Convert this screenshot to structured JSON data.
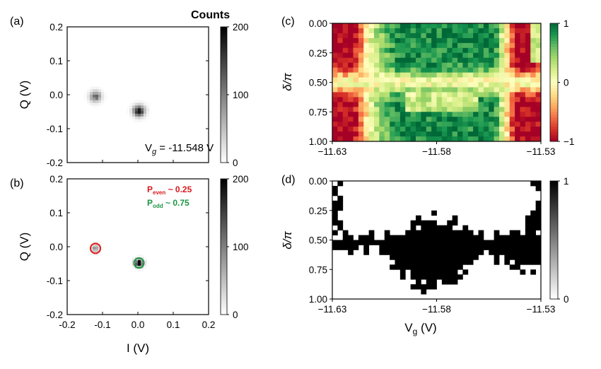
{
  "figure": {
    "panel_labels": [
      "(a)",
      "(b)",
      "(c)",
      "(d)"
    ],
    "colorbar_title": "Counts"
  },
  "chart_data": [
    {
      "panel": "(a)",
      "type": "heatmap",
      "description": "IQ histogram",
      "xlabel": "",
      "ylabel": "Q (V)",
      "xlim": [
        -0.2,
        0.2
      ],
      "ylim": [
        -0.2,
        0.2
      ],
      "xticks": [],
      "yticks": [
        "0.2",
        "0.1",
        "0.0",
        "-0.1",
        "-0.2"
      ],
      "clusters": [
        {
          "I": -0.12,
          "Q": -0.005,
          "peak_counts": 120,
          "sigma": 0.011
        },
        {
          "I": 0.003,
          "Q": -0.048,
          "peak_counts": 200,
          "sigma": 0.011
        }
      ],
      "colorbar": {
        "min": 0,
        "max": 200,
        "ticks": [
          "200",
          "100",
          "0"
        ],
        "map": "grey"
      },
      "annotation": {
        "prefix": "V",
        "subscript": "g",
        "suffix": " = -11.548 V"
      }
    },
    {
      "panel": "(b)",
      "type": "heatmap",
      "description": "IQ histogram with state fits",
      "xlabel": "I (V)",
      "ylabel": "Q (V)",
      "xlim": [
        -0.2,
        0.2
      ],
      "ylim": [
        -0.2,
        0.2
      ],
      "xticks": [
        "-0.2",
        "-0.1",
        "0.0",
        "0.1",
        "0.2"
      ],
      "yticks": [
        "0.2",
        "0.1",
        "0.0",
        "-0.1",
        "-0.2"
      ],
      "clusters": [
        {
          "I": -0.12,
          "Q": -0.005,
          "peak_counts": 80,
          "sigma": 0.008,
          "circle_color": "#e41a1c"
        },
        {
          "I": 0.003,
          "Q": -0.048,
          "peak_counts": 200,
          "sigma": 0.008,
          "circle_color": "#1a9641"
        }
      ],
      "colorbar": {
        "min": 0,
        "max": 200,
        "ticks": [
          "200",
          "100",
          "0"
        ],
        "map": "grey"
      },
      "legend": [
        {
          "label_main": "P",
          "label_sub": "even",
          "label_value": " ~ 0.25",
          "value": 0.25,
          "color": "#d7191c"
        },
        {
          "label_main": "P",
          "label_sub": "odd",
          "label_value": " ~ 0.75",
          "value": 0.75,
          "color": "#1a9641"
        }
      ]
    },
    {
      "panel": "(c)",
      "type": "heatmap",
      "xlabel": "",
      "ylabel": "δ/π",
      "xlim": [
        -11.63,
        -11.53
      ],
      "ylim": [
        1.0,
        0.0
      ],
      "xticks": [
        "−11.63",
        "−11.58",
        "−11.53"
      ],
      "yticks": [
        "0.00",
        "0.25",
        "0.50",
        "0.75",
        "1.00"
      ],
      "colorbar": {
        "min": -1,
        "max": 1,
        "ticks": [
          "1",
          "0",
          "−1"
        ],
        "map": "RdYlGn"
      },
      "grid_cols": 40,
      "grid_rows": 24
    },
    {
      "panel": "(d)",
      "type": "heatmap",
      "xlabel": "V",
      "xlabel_sub": "g",
      "xlabel_unit": " (V)",
      "ylabel": "δ/π",
      "xlim": [
        -11.63,
        -11.53
      ],
      "ylim": [
        1.0,
        0.0
      ],
      "xticks": [
        "−11.63",
        "−11.58",
        "−11.53"
      ],
      "yticks": [
        "0.00",
        "0.25",
        "0.50",
        "0.75",
        "1.00"
      ],
      "colorbar": {
        "min": 0,
        "max": 1,
        "ticks": [
          "1",
          "0"
        ],
        "map": "grey"
      },
      "grid_cols": 40,
      "grid_rows": 24,
      "black_region": {
        "row_top_threshold": 0.45,
        "lower_lobe_center_x": -11.582,
        "lower_lobe_bottom": 0.9,
        "upper_left_corner_top": true,
        "upper_right_corner_top": true
      }
    }
  ]
}
